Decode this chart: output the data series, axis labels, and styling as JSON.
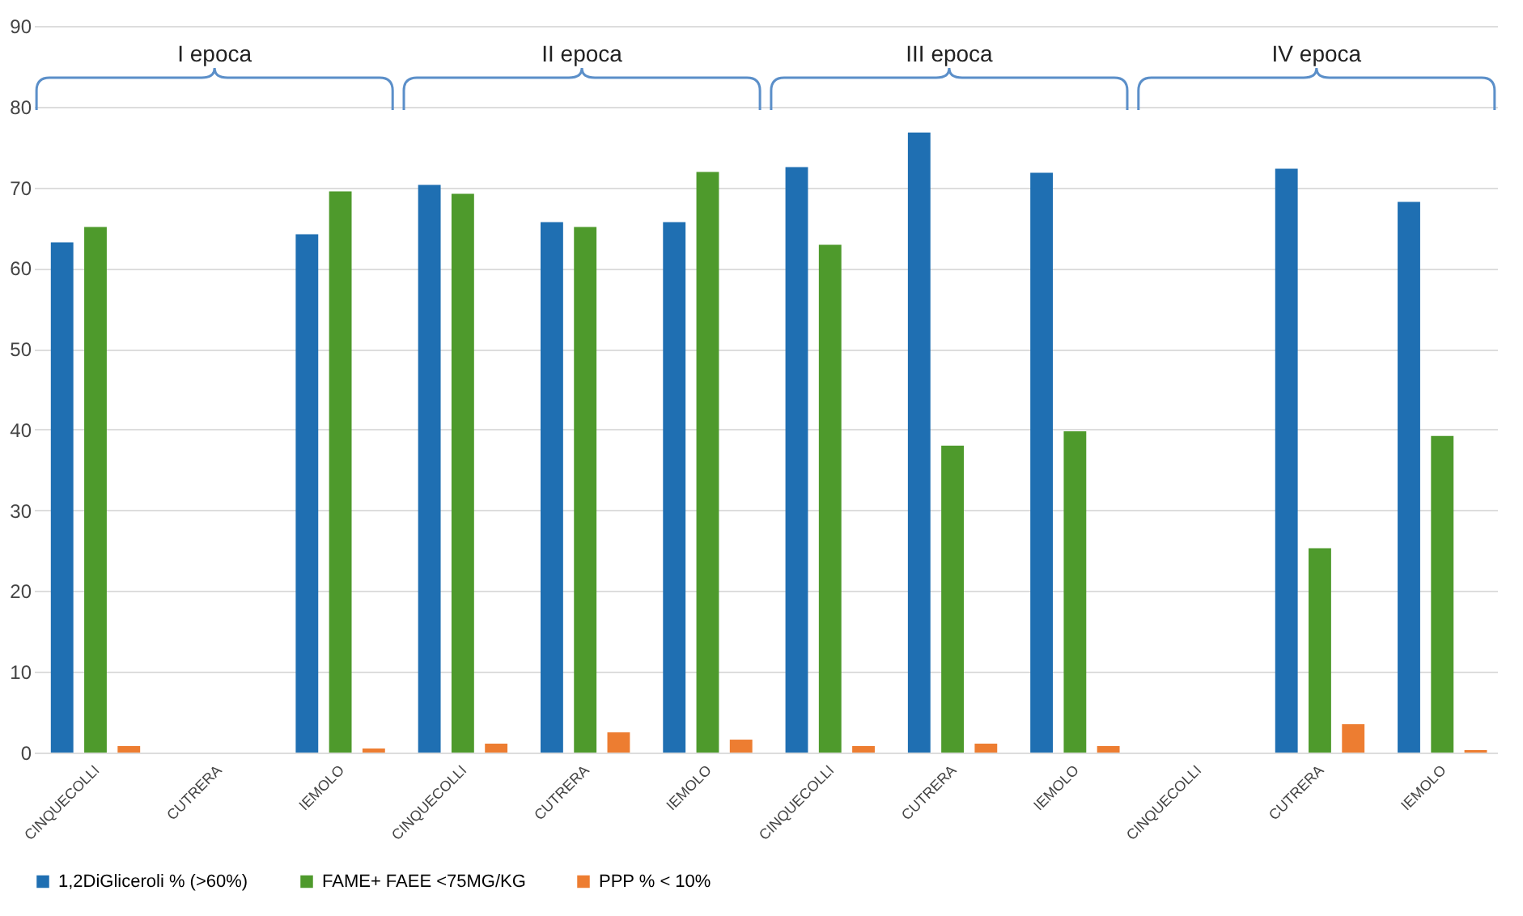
{
  "chart_data": {
    "type": "bar",
    "categories": [
      "CINQUECOLLI",
      "CUTRERA",
      "IEMOLO",
      "CINQUECOLLI",
      "CUTRERA",
      "IEMOLO",
      "CINQUECOLLI",
      "CUTRERA",
      "IEMOLO",
      "CINQUECOLLI",
      "CUTRERA",
      "IEMOLO"
    ],
    "series": [
      {
        "name": "1,2DiGliceroli % (>60%)",
        "color": "#1f6fb2",
        "values": [
          63.2,
          null,
          64.2,
          70.3,
          65.7,
          65.7,
          72.5,
          76.8,
          71.8,
          null,
          72.3,
          68.2
        ]
      },
      {
        "name": "FAME+ FAEE <75MG/KG",
        "color": "#4e9a2c",
        "values": [
          65.1,
          null,
          69.5,
          69.2,
          65.1,
          71.9,
          62.9,
          38.0,
          39.8,
          null,
          25.3,
          39.2
        ]
      },
      {
        "name": "PPP % < 10%",
        "color": "#ed7d31",
        "values": [
          0.8,
          null,
          0.5,
          1.1,
          2.5,
          1.6,
          0.8,
          1.1,
          0.8,
          null,
          3.5,
          0.3
        ]
      }
    ],
    "annotations": [
      "I epoca",
      "II epoca",
      "III epoca",
      "IV epoca"
    ],
    "ylim": [
      0,
      90
    ],
    "yticks": [
      0,
      10,
      20,
      30,
      40,
      50,
      60,
      70,
      80,
      90
    ],
    "grid": "y",
    "legend": "bottom"
  }
}
